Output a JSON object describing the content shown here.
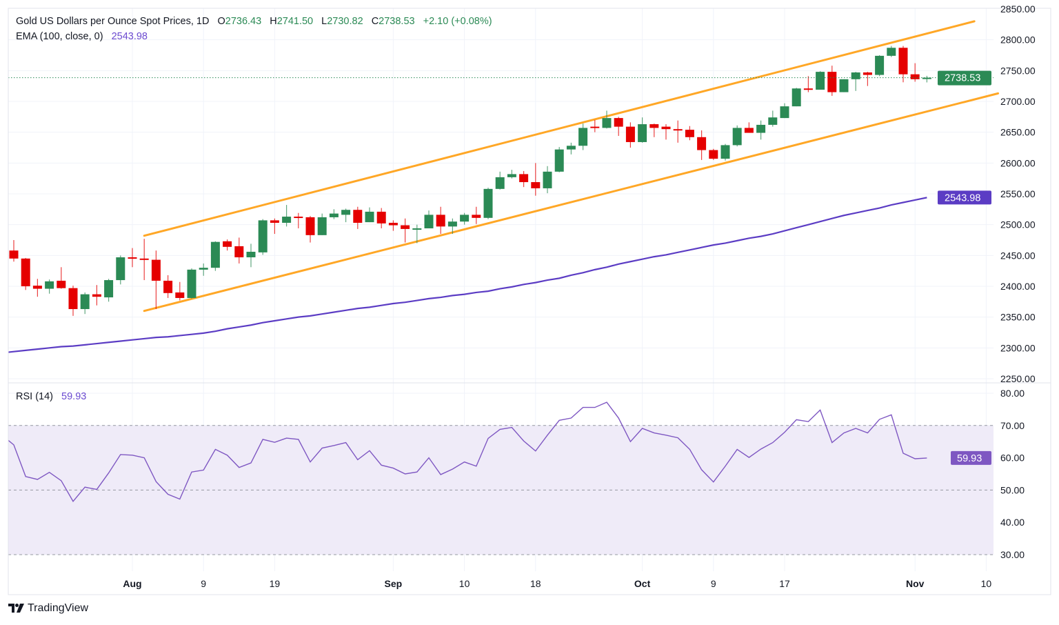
{
  "header": {
    "title": "Gold US Dollars per Ounce Spot Prices, 1D",
    "o_label": "O",
    "o_value": "2736.43",
    "h_label": "H",
    "h_value": "2741.50",
    "l_label": "L",
    "l_value": "2730.82",
    "c_label": "C",
    "c_value": "2738.53",
    "change": "+2.10 (+0.08%)",
    "ema_label": "EMA (100, close, 0)",
    "ema_value": "2543.98",
    "rsi_label": "RSI (14)",
    "rsi_value": "59.93"
  },
  "badges": {
    "last_price": "2738.53",
    "ema": "2543.98",
    "rsi": "59.93"
  },
  "brand": {
    "name": "TradingView"
  },
  "colors": {
    "up": "#2b8a55",
    "down": "#e50000",
    "channel": "#ffa726",
    "ema": "#5b3cc4",
    "rsi": "#7e57c2",
    "rsi_band": "#efebf8",
    "grid": "#f0f3fa"
  },
  "chart_data": [
    {
      "type": "candlestick",
      "title": "Gold US Dollars per Ounce Spot Prices, 1D",
      "ylim": [
        2242,
        2851
      ],
      "y_ticks": [
        "2850.00",
        "2800.00",
        "2750.00",
        "2700.00",
        "2650.00",
        "2600.00",
        "2550.00",
        "2500.00",
        "2450.00",
        "2400.00",
        "2350.00",
        "2300.00",
        "2250.00"
      ],
      "x_ticks": [
        {
          "label": "Aug",
          "date": "Aug 1",
          "bold": true
        },
        {
          "label": "9",
          "date": "Aug 9"
        },
        {
          "label": "19",
          "date": "Aug 19"
        },
        {
          "label": "Sep",
          "date": "Sep 2",
          "bold": true
        },
        {
          "label": "10",
          "date": "Sep 10"
        },
        {
          "label": "18",
          "date": "Sep 18"
        },
        {
          "label": "Oct",
          "date": "Oct 1",
          "bold": true
        },
        {
          "label": "9",
          "date": "Oct 9"
        },
        {
          "label": "17",
          "date": "Oct 17"
        },
        {
          "label": "Nov",
          "date": "Nov 1",
          "bold": true
        },
        {
          "label": "10",
          "date": "Nov 10"
        }
      ],
      "grid": true,
      "columns": [
        "date",
        "open",
        "high",
        "low",
        "close"
      ],
      "candles": [
        [
          "Jul 18",
          2458,
          2475,
          2440,
          2445
        ],
        [
          "Jul 19",
          2445,
          2446,
          2394,
          2400
        ],
        [
          "Jul 22",
          2401,
          2412,
          2383,
          2396
        ],
        [
          "Jul 23",
          2396,
          2411,
          2388,
          2408
        ],
        [
          "Jul 24",
          2409,
          2431,
          2396,
          2397
        ],
        [
          "Jul 25",
          2397,
          2401,
          2352,
          2363
        ],
        [
          "Jul 26",
          2363,
          2390,
          2355,
          2387
        ],
        [
          "Jul 29",
          2387,
          2402,
          2369,
          2383
        ],
        [
          "Jul 30",
          2382,
          2412,
          2375,
          2410
        ],
        [
          "Jul 31",
          2410,
          2450,
          2403,
          2447
        ],
        [
          "Aug 1",
          2447,
          2462,
          2431,
          2445
        ],
        [
          "Aug 2",
          2445,
          2477,
          2410,
          2443
        ],
        [
          "Aug 5",
          2443,
          2458,
          2363,
          2409
        ],
        [
          "Aug 6",
          2409,
          2418,
          2381,
          2389
        ],
        [
          "Aug 7",
          2390,
          2407,
          2377,
          2381
        ],
        [
          "Aug 8",
          2381,
          2429,
          2380,
          2427
        ],
        [
          "Aug 9",
          2427,
          2437,
          2417,
          2430
        ],
        [
          "Aug 12",
          2430,
          2473,
          2425,
          2472
        ],
        [
          "Aug 13",
          2473,
          2476,
          2458,
          2464
        ],
        [
          "Aug 14",
          2465,
          2479,
          2437,
          2447
        ],
        [
          "Aug 15",
          2447,
          2469,
          2431,
          2456
        ],
        [
          "Aug 16",
          2455,
          2509,
          2451,
          2507
        ],
        [
          "Aug 19",
          2507,
          2510,
          2485,
          2503
        ],
        [
          "Aug 20",
          2503,
          2532,
          2497,
          2513
        ],
        [
          "Aug 21",
          2513,
          2519,
          2494,
          2511
        ],
        [
          "Aug 22",
          2512,
          2514,
          2471,
          2483
        ],
        [
          "Aug 23",
          2483,
          2518,
          2483,
          2512
        ],
        [
          "Aug 26",
          2512,
          2525,
          2509,
          2518
        ],
        [
          "Aug 27",
          2516,
          2526,
          2504,
          2524
        ],
        [
          "Aug 28",
          2524,
          2529,
          2493,
          2503
        ],
        [
          "Aug 29",
          2504,
          2528,
          2504,
          2521
        ],
        [
          "Aug 30",
          2521,
          2527,
          2494,
          2502
        ],
        [
          "Sep 2",
          2503,
          2507,
          2490,
          2499
        ],
        [
          "Sep 3",
          2499,
          2510,
          2471,
          2493
        ],
        [
          "Sep 4",
          2493,
          2500,
          2470,
          2494
        ],
        [
          "Sep 5",
          2494,
          2523,
          2494,
          2516
        ],
        [
          "Sep 6",
          2516,
          2529,
          2485,
          2497
        ],
        [
          "Sep 9",
          2497,
          2510,
          2485,
          2505
        ],
        [
          "Sep 10",
          2505,
          2519,
          2500,
          2516
        ],
        [
          "Sep 11",
          2516,
          2529,
          2501,
          2511
        ],
        [
          "Sep 12",
          2511,
          2560,
          2509,
          2558
        ],
        [
          "Sep 13",
          2558,
          2586,
          2557,
          2577
        ],
        [
          "Sep 16",
          2577,
          2589,
          2575,
          2582
        ],
        [
          "Sep 17",
          2582,
          2587,
          2561,
          2569
        ],
        [
          "Sep 18",
          2569,
          2600,
          2547,
          2559
        ],
        [
          "Sep 19",
          2559,
          2595,
          2551,
          2586
        ],
        [
          "Sep 20",
          2586,
          2626,
          2585,
          2622
        ],
        [
          "Sep 23",
          2622,
          2633,
          2614,
          2628
        ],
        [
          "Sep 24",
          2628,
          2664,
          2621,
          2657
        ],
        [
          "Sep 25",
          2659,
          2670,
          2650,
          2657
        ],
        [
          "Sep 26",
          2657,
          2685,
          2656,
          2673
        ],
        [
          "Sep 27",
          2673,
          2675,
          2644,
          2659
        ],
        [
          "Sep 30",
          2659,
          2666,
          2625,
          2634
        ],
        [
          "Oct 1",
          2634,
          2674,
          2633,
          2663
        ],
        [
          "Oct 2",
          2663,
          2664,
          2642,
          2657
        ],
        [
          "Oct 3",
          2659,
          2663,
          2638,
          2655
        ],
        [
          "Oct 4",
          2655,
          2669,
          2633,
          2653
        ],
        [
          "Oct 7",
          2654,
          2660,
          2637,
          2642
        ],
        [
          "Oct 8",
          2642,
          2653,
          2605,
          2621
        ],
        [
          "Oct 9",
          2621,
          2623,
          2605,
          2607
        ],
        [
          "Oct 10",
          2607,
          2631,
          2604,
          2629
        ],
        [
          "Oct 11",
          2629,
          2661,
          2627,
          2657
        ],
        [
          "Oct 14",
          2657,
          2666,
          2649,
          2649
        ],
        [
          "Oct 15",
          2649,
          2669,
          2638,
          2662
        ],
        [
          "Oct 16",
          2662,
          2685,
          2659,
          2674
        ],
        [
          "Oct 17",
          2673,
          2697,
          2673,
          2692
        ],
        [
          "Oct 18",
          2692,
          2722,
          2692,
          2721
        ],
        [
          "Oct 21",
          2721,
          2741,
          2715,
          2719
        ],
        [
          "Oct 22",
          2719,
          2749,
          2719,
          2748
        ],
        [
          "Oct 23",
          2748,
          2758,
          2709,
          2715
        ],
        [
          "Oct 24",
          2715,
          2736,
          2715,
          2736
        ],
        [
          "Oct 25",
          2736,
          2748,
          2717,
          2747
        ],
        [
          "Oct 28",
          2747,
          2748,
          2725,
          2743
        ],
        [
          "Oct 29",
          2743,
          2775,
          2741,
          2774
        ],
        [
          "Oct 30",
          2774,
          2790,
          2772,
          2787
        ],
        [
          "Oct 31",
          2787,
          2790,
          2731,
          2744
        ],
        [
          "Nov 1",
          2744,
          2762,
          2732,
          2736
        ],
        [
          "Nov 4",
          2736.43,
          2741.5,
          2730.82,
          2738.53
        ]
      ],
      "last_price": 2738.53,
      "ema": {
        "name": "EMA (100, close, 0)",
        "values": [
          2294,
          2296,
          2298,
          2300,
          2302,
          2303,
          2305,
          2307,
          2309,
          2311,
          2313,
          2315,
          2317,
          2318,
          2320,
          2322,
          2324,
          2327,
          2331,
          2334,
          2337,
          2341,
          2344,
          2347,
          2350,
          2352,
          2355,
          2358,
          2361,
          2364,
          2366,
          2369,
          2372,
          2374,
          2377,
          2380,
          2382,
          2385,
          2387,
          2390,
          2392,
          2396,
          2399,
          2403,
          2406,
          2410,
          2413,
          2418,
          2422,
          2427,
          2431,
          2436,
          2440,
          2444,
          2448,
          2451,
          2455,
          2459,
          2463,
          2467,
          2470,
          2474,
          2478,
          2481,
          2485,
          2490,
          2495,
          2500,
          2505,
          2510,
          2515,
          2519,
          2523,
          2527,
          2532,
          2536,
          2540,
          2543.98
        ]
      },
      "channel": {
        "upper": [
          {
            "date": "Aug 2",
            "price": 2482
          },
          {
            "date": "Nov 8",
            "price": 2830
          }
        ],
        "lower": [
          {
            "date": "Aug 2",
            "price": 2360
          },
          {
            "date": "Nov 12",
            "price": 2713
          }
        ]
      }
    },
    {
      "type": "line",
      "title": "RSI (14)",
      "ylim": [
        25,
        83
      ],
      "y_ticks": [
        "80.00",
        "70.00",
        "60.00",
        "50.00",
        "40.00",
        "30.00"
      ],
      "bands": {
        "upper": 70,
        "middle": 50,
        "lower": 30
      },
      "values": [
        64.0,
        54.2,
        53.3,
        55.5,
        52.9,
        46.5,
        50.9,
        50.2,
        55.3,
        61.0,
        60.8,
        60.0,
        52.6,
        48.7,
        47.2,
        55.6,
        56.2,
        62.6,
        60.8,
        57.0,
        58.4,
        65.7,
        64.8,
        66.1,
        65.7,
        58.7,
        63.0,
        63.8,
        64.7,
        59.4,
        62.2,
        57.7,
        56.8,
        55.0,
        55.6,
        60.0,
        54.8,
        56.5,
        58.7,
        57.4,
        66.0,
        68.8,
        69.4,
        65.2,
        62.1,
        67.0,
        71.6,
        72.3,
        75.6,
        75.6,
        77.2,
        72.3,
        65.0,
        69.1,
        67.7,
        67.0,
        66.2,
        62.6,
        56.3,
        52.5,
        57.4,
        62.6,
        60.1,
        62.7,
        64.7,
        67.9,
        71.8,
        71.2,
        74.8,
        64.7,
        67.7,
        69.1,
        67.7,
        71.9,
        73.3,
        61.4,
        59.7,
        59.93
      ]
    }
  ]
}
